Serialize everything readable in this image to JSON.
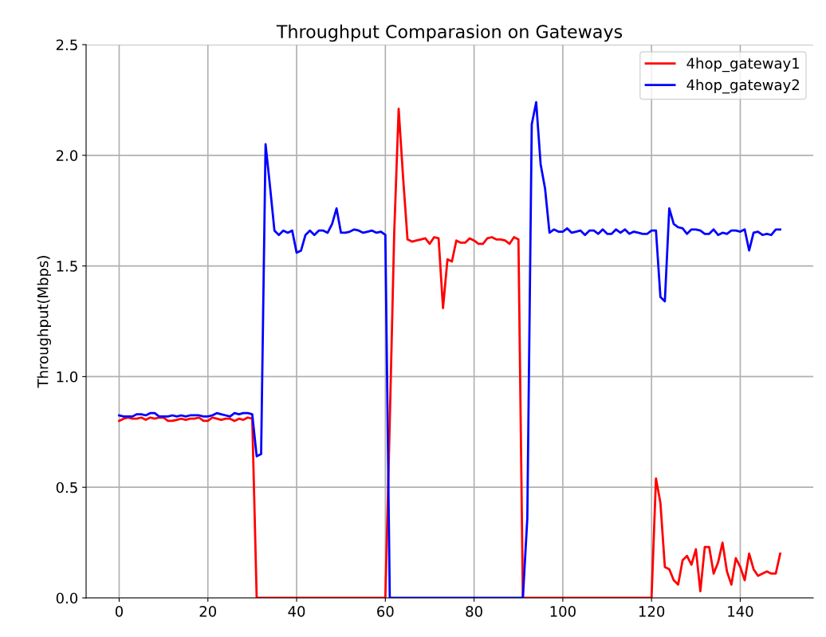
{
  "chart_data": {
    "type": "line",
    "title": "Throughput Comparasion on Gateways",
    "ylabel": "Throughput(Mbps)",
    "x": [
      0,
      1,
      2,
      3,
      4,
      5,
      6,
      7,
      8,
      9,
      10,
      11,
      12,
      13,
      14,
      15,
      16,
      17,
      18,
      19,
      20,
      21,
      22,
      23,
      24,
      25,
      26,
      27,
      28,
      29,
      30,
      31,
      32,
      33,
      34,
      35,
      36,
      37,
      38,
      39,
      40,
      41,
      42,
      43,
      44,
      45,
      46,
      47,
      48,
      49,
      50,
      51,
      52,
      53,
      54,
      55,
      56,
      57,
      58,
      59,
      60,
      61,
      62,
      63,
      64,
      65,
      66,
      67,
      68,
      69,
      70,
      71,
      72,
      73,
      74,
      75,
      76,
      77,
      78,
      79,
      80,
      81,
      82,
      83,
      84,
      85,
      86,
      87,
      88,
      89,
      90,
      91,
      92,
      93,
      94,
      95,
      96,
      97,
      98,
      99,
      100,
      101,
      102,
      103,
      104,
      105,
      106,
      107,
      108,
      109,
      110,
      111,
      112,
      113,
      114,
      115,
      116,
      117,
      118,
      119,
      120,
      121,
      122,
      123,
      124,
      125,
      126,
      127,
      128,
      129,
      130,
      131,
      132,
      133,
      134,
      135,
      136,
      137,
      138,
      139,
      140,
      141,
      142,
      143,
      144,
      145,
      146,
      147,
      148,
      149
    ],
    "series": [
      {
        "name": "4hop_gateway1",
        "color": "#ff0000",
        "values": [
          0.8,
          0.81,
          0.815,
          0.81,
          0.81,
          0.815,
          0.805,
          0.815,
          0.81,
          0.815,
          0.815,
          0.8,
          0.8,
          0.805,
          0.81,
          0.805,
          0.81,
          0.81,
          0.815,
          0.8,
          0.8,
          0.815,
          0.81,
          0.805,
          0.81,
          0.81,
          0.8,
          0.81,
          0.805,
          0.815,
          0.81,
          0,
          0,
          0,
          0,
          0,
          0,
          0,
          0,
          0,
          0,
          0,
          0,
          0,
          0,
          0,
          0,
          0,
          0,
          0,
          0,
          0,
          0,
          0,
          0,
          0,
          0,
          0,
          0,
          0,
          0,
          0.8,
          1.65,
          2.21,
          1.9,
          1.62,
          1.61,
          1.615,
          1.62,
          1.625,
          1.6,
          1.63,
          1.625,
          1.31,
          1.53,
          1.52,
          1.615,
          1.605,
          1.605,
          1.625,
          1.615,
          1.6,
          1.6,
          1.625,
          1.63,
          1.62,
          1.62,
          1.615,
          1.6,
          1.63,
          1.62,
          0,
          0,
          0,
          0,
          0,
          0,
          0,
          0,
          0,
          0,
          0,
          0,
          0,
          0,
          0,
          0,
          0,
          0,
          0,
          0,
          0,
          0,
          0,
          0,
          0,
          0,
          0,
          0,
          0,
          0,
          0.54,
          0.43,
          0.14,
          0.13,
          0.08,
          0.06,
          0.17,
          0.19,
          0.15,
          0.22,
          0.03,
          0.23,
          0.23,
          0.11,
          0.16,
          0.25,
          0.12,
          0.06,
          0.18,
          0.14,
          0.08,
          0.2,
          0.13,
          0.1,
          0.11,
          0.12,
          0.11,
          0.11,
          0.2
        ]
      },
      {
        "name": "4hop_gateway2",
        "color": "#0000ff",
        "values": [
          0.825,
          0.82,
          0.82,
          0.82,
          0.83,
          0.83,
          0.825,
          0.835,
          0.835,
          0.82,
          0.82,
          0.82,
          0.825,
          0.82,
          0.825,
          0.82,
          0.825,
          0.825,
          0.825,
          0.82,
          0.82,
          0.825,
          0.835,
          0.83,
          0.825,
          0.82,
          0.835,
          0.83,
          0.835,
          0.835,
          0.83,
          0.64,
          0.65,
          2.05,
          1.86,
          1.66,
          1.64,
          1.66,
          1.65,
          1.66,
          1.56,
          1.57,
          1.64,
          1.66,
          1.64,
          1.66,
          1.66,
          1.65,
          1.69,
          1.76,
          1.65,
          1.65,
          1.655,
          1.665,
          1.66,
          1.65,
          1.655,
          1.66,
          1.65,
          1.655,
          1.64,
          0,
          0,
          0,
          0,
          0,
          0,
          0,
          0,
          0,
          0,
          0,
          0,
          0,
          0,
          0,
          0,
          0,
          0,
          0,
          0,
          0,
          0,
          0,
          0,
          0,
          0,
          0,
          0,
          0,
          0,
          0,
          0.36,
          2.14,
          2.24,
          1.96,
          1.85,
          1.65,
          1.665,
          1.655,
          1.655,
          1.67,
          1.65,
          1.655,
          1.66,
          1.64,
          1.66,
          1.66,
          1.645,
          1.665,
          1.645,
          1.645,
          1.665,
          1.65,
          1.665,
          1.645,
          1.655,
          1.65,
          1.645,
          1.645,
          1.66,
          1.66,
          1.36,
          1.34,
          1.76,
          1.69,
          1.675,
          1.67,
          1.645,
          1.665,
          1.665,
          1.66,
          1.645,
          1.645,
          1.665,
          1.64,
          1.65,
          1.645,
          1.66,
          1.66,
          1.655,
          1.665,
          1.57,
          1.65,
          1.655,
          1.64,
          1.645,
          1.64,
          1.665,
          1.665
        ]
      }
    ],
    "xlim": [
      -7.45,
      156.45
    ],
    "xticks": [
      0,
      20,
      40,
      60,
      80,
      100,
      120,
      140
    ],
    "ylim": [
      0,
      2.5
    ],
    "yticks": [
      {
        "value": 0,
        "label": "0.0"
      },
      {
        "value": 0.5,
        "label": "0.5"
      },
      {
        "value": 1,
        "label": "1.0"
      },
      {
        "value": 1.5,
        "label": "1.5"
      },
      {
        "value": 2,
        "label": "2.0"
      },
      {
        "value": 2.5,
        "label": "2.5"
      }
    ],
    "grid": true,
    "legend": "top right"
  }
}
